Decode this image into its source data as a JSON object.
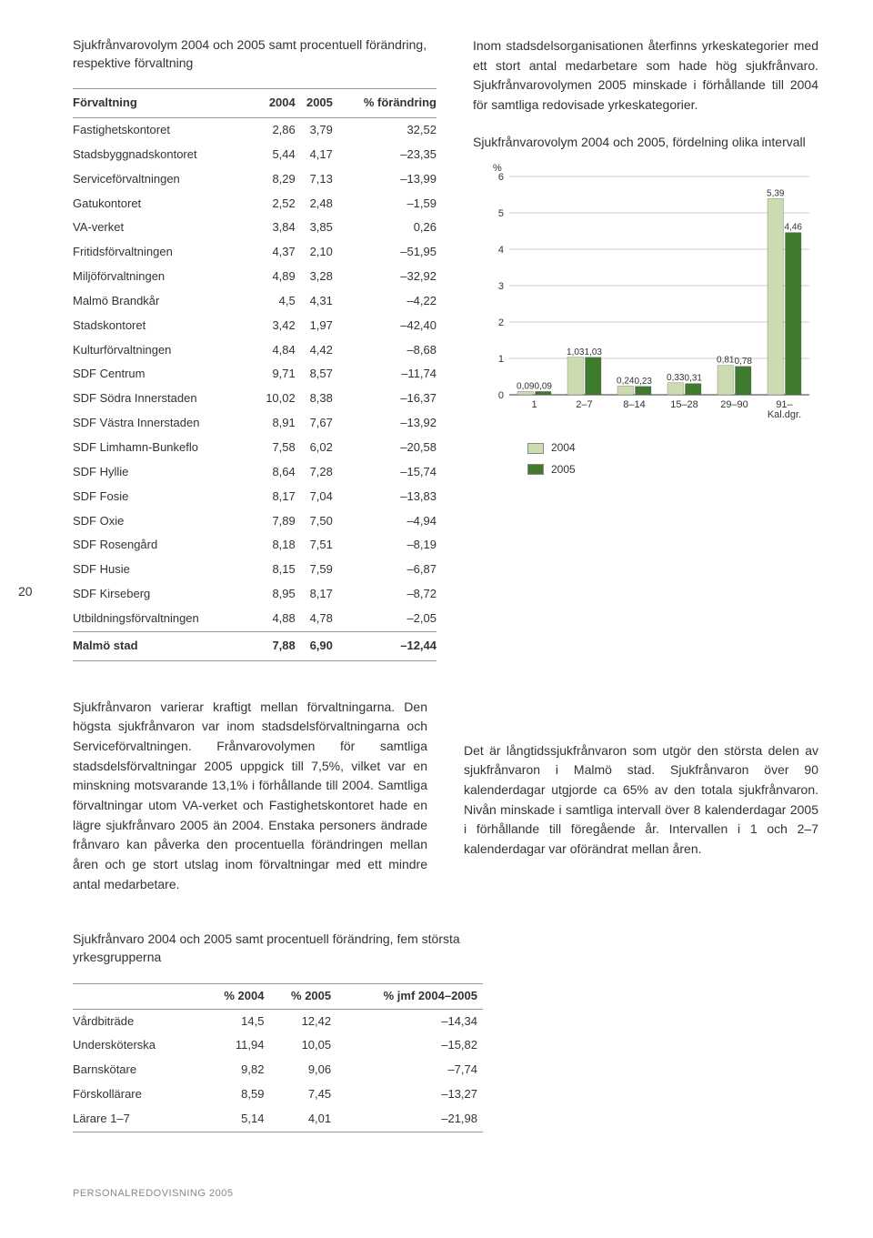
{
  "page_number": "20",
  "table1": {
    "title": "Sjukfrånvarovolym 2004 och 2005 samt procentuell förändring, respektive förvaltning",
    "columns": [
      "Förvaltning",
      "2004",
      "2005",
      "% förändring"
    ],
    "rows": [
      [
        "Fastighetskontoret",
        "2,86",
        "3,79",
        "32,52"
      ],
      [
        "Stadsbyggnadskontoret",
        "5,44",
        "4,17",
        "–23,35"
      ],
      [
        "Serviceförvaltningen",
        "8,29",
        "7,13",
        "–13,99"
      ],
      [
        "Gatukontoret",
        "2,52",
        "2,48",
        "–1,59"
      ],
      [
        "VA-verket",
        "3,84",
        "3,85",
        "0,26"
      ],
      [
        "Fritidsförvaltningen",
        "4,37",
        "2,10",
        "–51,95"
      ],
      [
        "Miljöförvaltningen",
        "4,89",
        "3,28",
        "–32,92"
      ],
      [
        "Malmö Brandkår",
        "4,5",
        "4,31",
        "–4,22"
      ],
      [
        "Stadskontoret",
        "3,42",
        "1,97",
        "–42,40"
      ],
      [
        "Kulturförvaltningen",
        "4,84",
        "4,42",
        "–8,68"
      ],
      [
        "SDF Centrum",
        "9,71",
        "8,57",
        "–11,74"
      ],
      [
        "SDF Södra Innerstaden",
        "10,02",
        "8,38",
        "–16,37"
      ],
      [
        "SDF Västra Innerstaden",
        "8,91",
        "7,67",
        "–13,92"
      ],
      [
        "SDF Limhamn-Bunkeflo",
        "7,58",
        "6,02",
        "–20,58"
      ],
      [
        "SDF Hyllie",
        "8,64",
        "7,28",
        "–15,74"
      ],
      [
        "SDF Fosie",
        "8,17",
        "7,04",
        "–13,83"
      ],
      [
        "SDF Oxie",
        "7,89",
        "7,50",
        "–4,94"
      ],
      [
        "SDF Rosengård",
        "8,18",
        "7,51",
        "–8,19"
      ],
      [
        "SDF Husie",
        "8,15",
        "7,59",
        "–6,87"
      ],
      [
        "SDF Kirseberg",
        "8,95",
        "8,17",
        "–8,72"
      ],
      [
        "Utbildningsförvaltningen",
        "4,88",
        "4,78",
        "–2,05"
      ]
    ],
    "total": [
      "Malmö stad",
      "7,88",
      "6,90",
      "–12,44"
    ]
  },
  "right_paragraph": "Inom stadsdelsorganisationen återfinns yrkeskategorier med ett stort antal medarbetare som hade hög sjukfrånvaro. Sjukfrånvarovolymen 2005 minskade i förhållande till 2004 för samtliga redovisade yrkeskategorier.",
  "chart": {
    "title": "Sjukfrånvarovolym 2004 och 2005, fördelning olika intervall",
    "type": "bar",
    "y_label": "%",
    "y_max": 6,
    "y_ticks": [
      0,
      1,
      2,
      3,
      4,
      5,
      6
    ],
    "categories": [
      "1",
      "2–7",
      "8–14",
      "15–28",
      "29–90",
      "91– Kal.dgr."
    ],
    "series": [
      {
        "name": "2004",
        "color": "#cddcb0",
        "values": [
          0.09,
          1.03,
          0.24,
          0.33,
          0.81,
          5.39
        ]
      },
      {
        "name": "2005",
        "color": "#3f7a2f",
        "values": [
          0.09,
          1.03,
          0.23,
          0.31,
          0.78,
          4.46
        ]
      }
    ],
    "value_labels": [
      [
        "0,09",
        "0,09"
      ],
      [
        "1,03",
        "1,03"
      ],
      [
        "0,24",
        "0,23"
      ],
      [
        "0,33",
        "0,31"
      ],
      [
        "0,81",
        "0,78"
      ],
      [
        "5,39",
        "4,46"
      ]
    ],
    "background_color": "#ffffff",
    "grid_color": "#d0d0d0",
    "bar_gap": 2,
    "group_gap": 18
  },
  "mid_left_paragraph": "Sjukfrånvaron varierar kraftigt mellan förvaltningarna. Den högsta sjukfrånvaron var inom stadsdelsförvaltningarna och Serviceförvaltningen. Frånvarovolymen för samtliga stadsdelsförvaltningar 2005 uppgick till 7,5%, vilket var en minskning motsvarande 13,1% i förhållande till 2004. Samtliga förvaltningar utom VA-verket och Fastighetskontoret hade en lägre sjukfrånvaro 2005 än 2004. Enstaka personers ändrade frånvaro kan påverka den procentuella förändringen mellan åren och ge stort utslag inom förvaltningar med ett mindre antal medarbetare.",
  "mid_right_paragraph": "Det är långtidssjukfrånvaron som utgör den största delen av sjukfrånvaron i Malmö stad. Sjukfrånvaron över 90 kalenderdagar utgjorde ca 65% av den totala sjukfrånvaron. Nivån minskade i samtliga intervall över 8 kalenderdagar 2005 i förhållande till föregående år. Intervallen i 1 och 2–7 kalenderdagar var oförändrat mellan åren.",
  "table2": {
    "title": "Sjukfrånvaro 2004 och 2005 samt procentuell förändring, fem största yrkesgrupperna",
    "columns": [
      "",
      "% 2004",
      "% 2005",
      "% jmf 2004–2005"
    ],
    "rows": [
      [
        "Vårdbiträde",
        "14,5",
        "12,42",
        "–14,34"
      ],
      [
        "Undersköterska",
        "11,94",
        "10,05",
        "–15,82"
      ],
      [
        "Barnskötare",
        "9,82",
        "9,06",
        "–7,74"
      ],
      [
        "Förskollärare",
        "8,59",
        "7,45",
        "–13,27"
      ],
      [
        "Lärare 1–7",
        "5,14",
        "4,01",
        "–21,98"
      ]
    ]
  },
  "footer": "PERSONALREDOVISNING 2005"
}
